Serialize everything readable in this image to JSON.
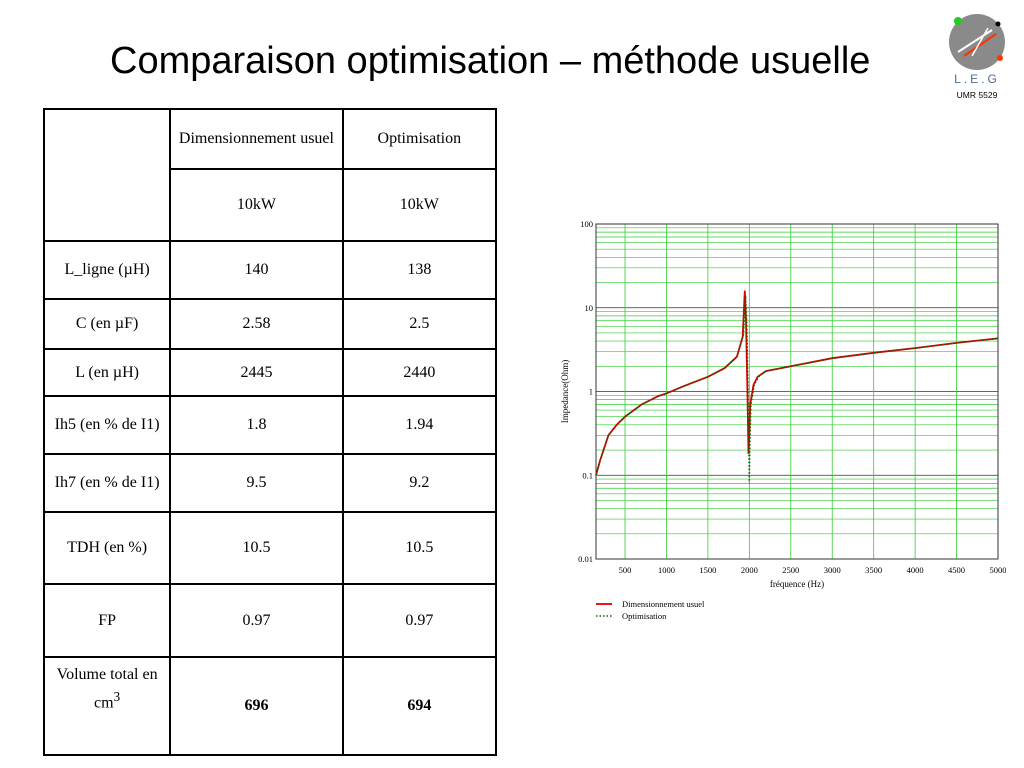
{
  "slide": {
    "title": "Comparaison optimisation – méthode usuelle"
  },
  "logo": {
    "text": "L.E.G",
    "subtitle": "UMR 5529"
  },
  "table": {
    "header": [
      "Dimensionnement usuel",
      "Optimisation"
    ],
    "power": [
      "10kW",
      "10kW"
    ],
    "rows": [
      {
        "label": "L_ligne (µH)",
        "usuel": "140",
        "optim": "138"
      },
      {
        "label": "C (en µF)",
        "usuel": "2.58",
        "optim": "2.5"
      },
      {
        "label": "L (en µH)",
        "usuel": "2445",
        "optim": "2440"
      },
      {
        "label": "Ih5 (en % de I1)",
        "usuel": "1.8",
        "optim": "1.94"
      },
      {
        "label": "Ih7 (en % de I1)",
        "usuel": "9.5",
        "optim": "9.2"
      },
      {
        "label": "TDH (en %)",
        "usuel": "10.5",
        "optim": "10.5"
      },
      {
        "label": "FP",
        "usuel": "0.97",
        "optim": "0.97"
      }
    ],
    "volume": {
      "label": "Volume total en cm",
      "label_sup": "3",
      "usuel": "696",
      "optim": "694"
    }
  },
  "chart_data": {
    "type": "line",
    "xlabel": "fréquence (Hz)",
    "ylabel": "Impedance(Ohm)",
    "x_ticks": [
      "500",
      "1000",
      "1500",
      "2000",
      "2500",
      "3000",
      "3500",
      "4000",
      "4500",
      "5000"
    ],
    "y_ticks": [
      "100",
      "10",
      "1",
      "0.1",
      "0.01"
    ],
    "xlim": [
      150,
      5000
    ],
    "ylim": [
      0.01,
      100
    ],
    "y_scale": "log",
    "grid": true,
    "legend_position": "bottom-left",
    "series": [
      {
        "name": "Dimensionnement usuel",
        "color": "#dd0000",
        "style": "solid",
        "x": [
          150,
          200,
          300,
          400,
          500,
          700,
          900,
          1000,
          1200,
          1500,
          1700,
          1850,
          1920,
          1945,
          1960,
          1975,
          1990,
          2000,
          2010,
          2050,
          2100,
          2200,
          2500,
          3000,
          3500,
          4000,
          4500,
          5000
        ],
        "y": [
          0.1,
          0.15,
          0.3,
          0.4,
          0.5,
          0.7,
          0.88,
          0.95,
          1.15,
          1.5,
          1.9,
          2.6,
          4.5,
          16,
          7,
          1.2,
          0.18,
          0.3,
          0.7,
          1.2,
          1.5,
          1.75,
          2.0,
          2.5,
          2.9,
          3.3,
          3.8,
          4.3
        ]
      },
      {
        "name": "Optimisation",
        "color": "#006600",
        "style": "dotted",
        "x": [
          150,
          200,
          300,
          400,
          500,
          700,
          900,
          1000,
          1200,
          1500,
          1700,
          1850,
          1930,
          1955,
          1970,
          1985,
          2000,
          2010,
          2020,
          2060,
          2110,
          2200,
          2500,
          3000,
          3500,
          4000,
          4500,
          5000
        ],
        "y": [
          0.1,
          0.15,
          0.3,
          0.4,
          0.5,
          0.7,
          0.88,
          0.95,
          1.15,
          1.5,
          1.9,
          2.6,
          4.8,
          14,
          6,
          1.0,
          0.08,
          0.35,
          0.7,
          1.2,
          1.5,
          1.75,
          2.0,
          2.5,
          2.9,
          3.3,
          3.8,
          4.3
        ]
      }
    ]
  }
}
